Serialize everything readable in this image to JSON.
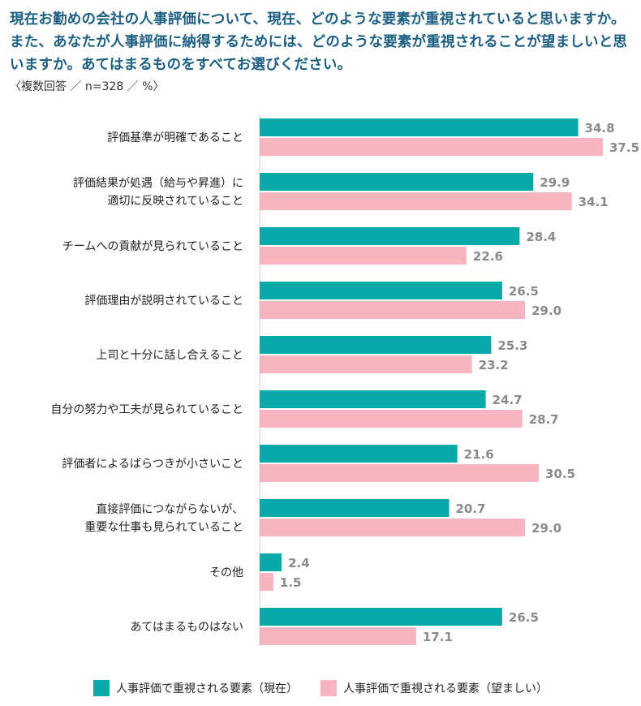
{
  "title": "現在お勤めの会社の人事評価について、現在、どのような要素が重視されていると思いますか。また、あなたが人事評価に納得するためには、どのような要素が重視されることが望ましいと思いますか。あてはまるものをすべてお選びください。",
  "subtitle": "〈複数回答 ／ n=328 ／ %〉",
  "colors": {
    "current": "#0aa8a8",
    "desired": "#f5b5c1"
  },
  "chart_data": {
    "type": "bar",
    "orientation": "horizontal",
    "categories": [
      [
        "評価基準が明確であること"
      ],
      [
        "評価結果が処遇（給与や昇進）に",
        "適切に反映されていること"
      ],
      [
        "チームへの貢献が見られていること"
      ],
      [
        "評価理由が説明されていること"
      ],
      [
        "上司と十分に話し合えること"
      ],
      [
        "自分の努力や工夫が見られていること"
      ],
      [
        "評価者によるばらつきが小さいこと"
      ],
      [
        "直接評価につながらないが、",
        "重要な仕事も見られていること"
      ],
      [
        "その他"
      ],
      [
        "あてはまるものはない"
      ]
    ],
    "series": [
      {
        "name": "人事評価で重視される要素（現在）",
        "values": [
          34.8,
          29.9,
          28.4,
          26.5,
          25.3,
          24.7,
          21.6,
          20.7,
          2.4,
          26.5
        ]
      },
      {
        "name": "人事評価で重視される要素（望ましい）",
        "values": [
          37.5,
          34.1,
          22.6,
          29.0,
          23.2,
          28.7,
          30.5,
          29.0,
          1.5,
          17.1
        ]
      }
    ],
    "value_labels": [
      [
        "34.8",
        "29.9",
        "28.4",
        "26.5",
        "25.3",
        "24.7",
        "21.6",
        "20.7",
        "2.4",
        "26.5"
      ],
      [
        "37.5",
        "34.1",
        "22.6",
        "29.0",
        "23.2",
        "28.7",
        "30.5",
        "29.0",
        "1.5",
        "17.1"
      ]
    ],
    "xlim": [
      0,
      40
    ],
    "legend": "bottom"
  }
}
